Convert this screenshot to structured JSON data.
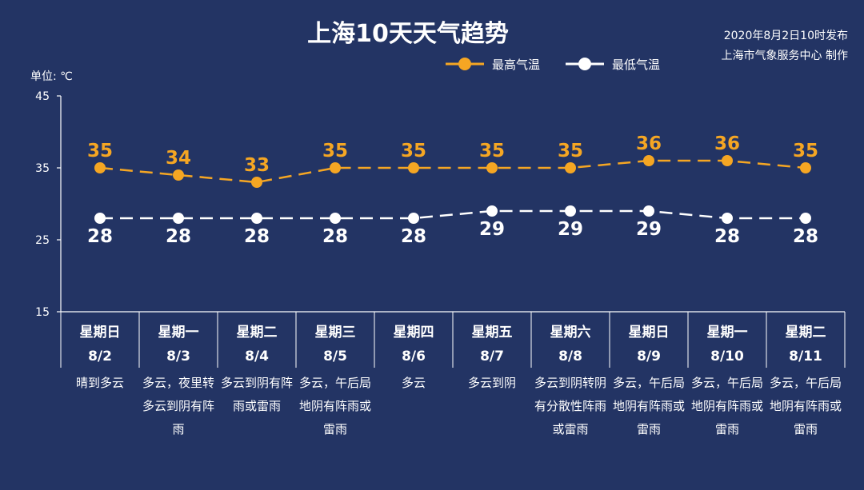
{
  "header": {
    "title": "上海10天天气趋势",
    "publish_time": "2020年8月2日10时发布",
    "publisher": "上海市气象服务中心 制作"
  },
  "colors": {
    "background": "#233464",
    "high": "#f5a623",
    "low": "#ffffff"
  },
  "chart_data": {
    "type": "line",
    "title": "上海10天天气趋势",
    "ylabel": "单位: ℃",
    "ylim": [
      15,
      45
    ],
    "yticks": [
      15,
      25,
      35,
      45
    ],
    "grid": false,
    "legend": "top-right",
    "categories": [
      "8/2",
      "8/3",
      "8/4",
      "8/5",
      "8/6",
      "8/7",
      "8/8",
      "8/9",
      "8/10",
      "8/11"
    ],
    "weekdays": [
      "星期日",
      "星期一",
      "星期二",
      "星期三",
      "星期四",
      "星期五",
      "星期六",
      "星期日",
      "星期一",
      "星期二"
    ],
    "weather": [
      "晴到多云",
      "多云，夜里转多云到阴有阵雨",
      "多云到阴有阵雨或雷雨",
      "多云，午后局地阴有阵雨或雷雨",
      "多云",
      "多云到阴",
      "多云到阴转阴有分散性阵雨或雷雨",
      "多云，午后局地阴有阵雨或雷雨",
      "多云，午后局地阴有阵雨或雷雨",
      "多云，午后局地阴有阵雨或雷雨"
    ],
    "series": [
      {
        "name": "最高气温",
        "values": [
          35,
          34,
          33,
          35,
          35,
          35,
          35,
          36,
          36,
          35
        ]
      },
      {
        "name": "最低气温",
        "values": [
          28,
          28,
          28,
          28,
          28,
          29,
          29,
          29,
          28,
          28
        ]
      }
    ]
  }
}
